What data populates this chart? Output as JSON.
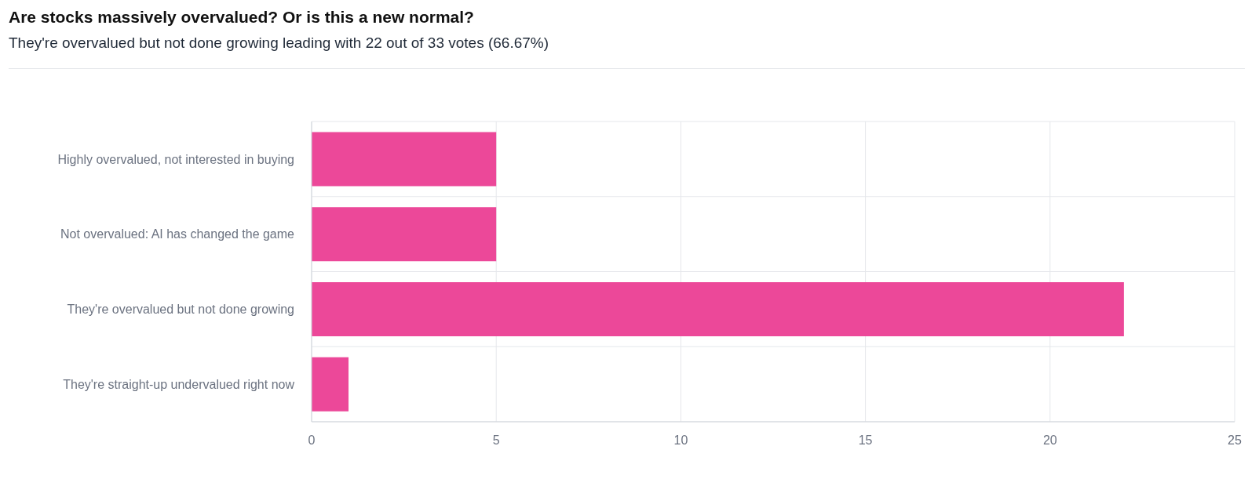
{
  "chart_data": {
    "type": "bar",
    "orientation": "horizontal",
    "title": "Are stocks massively overvalued? Or is this a new normal?",
    "subtitle": "They're overvalued but not done growing leading with 22 out of 33 votes (66.67%)",
    "categories": [
      "Highly overvalued, not interested in buying",
      "Not overvalued: AI has changed the game",
      "They're overvalued but not done growing",
      "They're straight-up undervalued right now"
    ],
    "values": [
      5,
      5,
      22,
      1
    ],
    "color": "#ec4899",
    "xlim": [
      0,
      25
    ],
    "xticks": [
      0,
      5,
      10,
      15,
      20,
      25
    ],
    "grid": true,
    "legend": false
  }
}
